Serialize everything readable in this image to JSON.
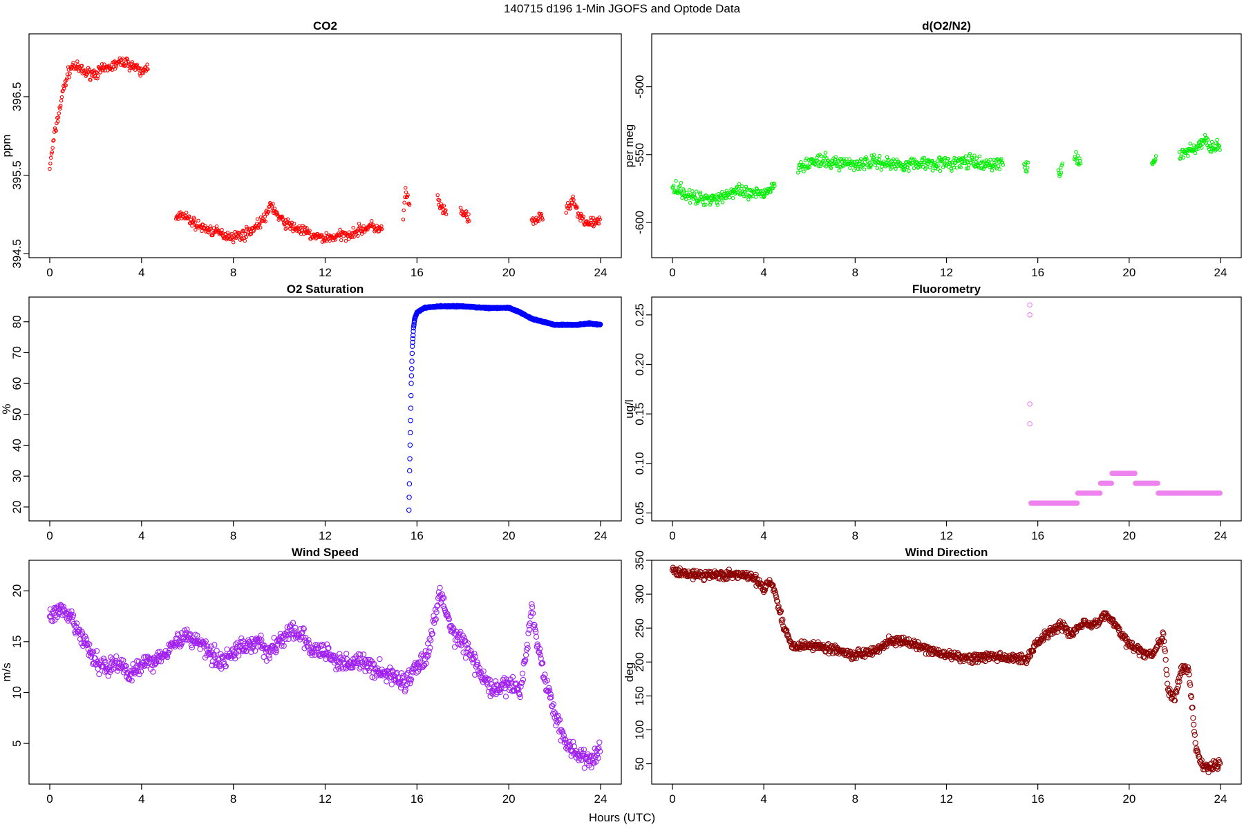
{
  "figure": {
    "suptitle": "140715   d196   1-Min  JGOFS and Optode Data",
    "xlabel": "Hours (UTC)"
  },
  "chart_data": [
    {
      "id": "co2",
      "type": "scatter",
      "title": "CO2",
      "ylabel": "ppm",
      "color": "#ff0000",
      "xlim": [
        0,
        24
      ],
      "ylim": [
        394.45,
        397.3
      ],
      "xticks": [
        0,
        4,
        8,
        12,
        16,
        20,
        24
      ],
      "yticks": [
        394.5,
        395.5,
        396.5
      ],
      "segments": [
        {
          "x": [
            0,
            0.2,
            0.4,
            0.6,
            0.8,
            1.0,
            1.3,
            1.6,
            2.0,
            2.4,
            2.8,
            3.2,
            3.6,
            4.0,
            4.3
          ],
          "y": [
            395.6,
            396.0,
            396.3,
            396.6,
            396.8,
            396.9,
            396.85,
            396.8,
            396.8,
            396.85,
            396.9,
            396.95,
            396.9,
            396.8,
            396.9
          ]
        },
        {
          "x": [
            5.5,
            6,
            6.5,
            7,
            7.5,
            8,
            8.5,
            9,
            9.5,
            9.6,
            10,
            10.5,
            11,
            11.5,
            12,
            12.5,
            13,
            13.5,
            14,
            14.5
          ],
          "y": [
            395.0,
            394.95,
            394.85,
            394.8,
            394.75,
            394.72,
            394.75,
            394.85,
            395.0,
            395.15,
            394.95,
            394.85,
            394.8,
            394.72,
            394.7,
            394.72,
            394.75,
            394.8,
            394.85,
            394.8
          ]
        },
        {
          "x": [
            15.4,
            15.5,
            15.6,
            15.7
          ],
          "y": [
            394.95,
            395.3,
            395.2,
            395.05
          ]
        },
        {
          "x": [
            16.9,
            17.1,
            17.3
          ],
          "y": [
            395.2,
            395.05,
            395.0
          ]
        },
        {
          "x": [
            17.9,
            18.1,
            18.3
          ],
          "y": [
            395.05,
            395.0,
            394.9
          ]
        },
        {
          "x": [
            21.0,
            21.3,
            21.5
          ],
          "y": [
            394.9,
            394.95,
            395.0
          ]
        },
        {
          "x": [
            22.5,
            22.8,
            23.0,
            23.3,
            23.6,
            24.0
          ],
          "y": [
            395.05,
            395.2,
            395.0,
            394.9,
            394.9,
            394.9
          ]
        }
      ]
    },
    {
      "id": "do2n2",
      "type": "scatter",
      "title": "d(O2/N2)",
      "ylabel": "per meg",
      "color": "#00ee00",
      "xlim": [
        0,
        24
      ],
      "ylim": [
        -626,
        -461
      ],
      "xticks": [
        0,
        4,
        8,
        12,
        16,
        20,
        24
      ],
      "yticks": [
        -500,
        -550,
        -600
      ],
      "segments": [
        {
          "x": [
            0,
            0.5,
            1,
            1.5,
            2,
            2.5,
            3,
            3.5,
            4,
            4.5
          ],
          "y": [
            -572,
            -578,
            -583,
            -582,
            -582,
            -578,
            -578,
            -580,
            -578,
            -573
          ]
        },
        {
          "x": [
            5.5,
            6,
            6.5,
            7,
            7.5,
            8,
            8.5,
            9,
            9.5,
            10,
            10.5,
            11,
            11.5,
            12,
            12.5,
            13,
            13.5,
            14,
            14.5
          ],
          "y": [
            -558,
            -556,
            -555,
            -556,
            -556,
            -557,
            -556,
            -555,
            -557,
            -557,
            -557,
            -556,
            -556,
            -557,
            -556,
            -555,
            -558,
            -557,
            -556
          ]
        },
        {
          "x": [
            15.4,
            15.6
          ],
          "y": [
            -558,
            -560
          ]
        },
        {
          "x": [
            16.9,
            17.1
          ],
          "y": [
            -562,
            -560
          ]
        },
        {
          "x": [
            17.6,
            17.9
          ],
          "y": [
            -555,
            -553
          ]
        },
        {
          "x": [
            21.0,
            21.2
          ],
          "y": [
            -556,
            -553
          ]
        },
        {
          "x": [
            22.2,
            22.5,
            22.9,
            23.3,
            23.6,
            24.0
          ],
          "y": [
            -550,
            -548,
            -545,
            -540,
            -543,
            -545
          ]
        }
      ]
    },
    {
      "id": "o2sat",
      "type": "scatter",
      "title": "O2 Saturation",
      "ylabel": "%",
      "color": "#0000ff",
      "xlim": [
        0,
        24
      ],
      "ylim": [
        15.5,
        88
      ],
      "xticks": [
        0,
        4,
        8,
        12,
        16,
        20,
        24
      ],
      "yticks": [
        20,
        30,
        40,
        50,
        60,
        70,
        80
      ],
      "segments": [
        {
          "x": [
            15.65,
            15.7,
            15.75,
            15.8,
            15.85,
            15.9,
            16.0,
            16.3,
            17.0,
            17.5,
            18,
            19,
            20,
            20.5,
            21,
            21.5,
            22,
            23,
            23.5,
            24
          ],
          "y": [
            19,
            40,
            60,
            72,
            78,
            81,
            83,
            84.5,
            85,
            85,
            85,
            84.5,
            84.5,
            83,
            81,
            80,
            79,
            79,
            79.5,
            79
          ]
        }
      ]
    },
    {
      "id": "fluor",
      "type": "scatter",
      "title": "Fluorometry",
      "ylabel": "ug/l",
      "color": "#ee82ee",
      "xlim": [
        0,
        24
      ],
      "ylim": [
        0.042,
        0.268
      ],
      "xticks": [
        0,
        4,
        8,
        12,
        16,
        20,
        24
      ],
      "yticks": [
        0.05,
        0.1,
        0.15,
        0.2,
        0.25
      ],
      "segments": [
        {
          "x": [
            15.7,
            16.0,
            16.5,
            17.0,
            17.5,
            18.0,
            18.5,
            19.0,
            19.5,
            20.0,
            20.5,
            21.0,
            21.5,
            22.0,
            22.5,
            23.0,
            23.5,
            24.0
          ],
          "y": [
            0.06,
            0.06,
            0.06,
            0.06,
            0.06,
            0.07,
            0.07,
            0.08,
            0.09,
            0.09,
            0.08,
            0.08,
            0.07,
            0.07,
            0.07,
            0.07,
            0.07,
            0.07
          ]
        }
      ],
      "extra_points": {
        "x": [
          15.65,
          15.65,
          15.65,
          15.65
        ],
        "y": [
          0.26,
          0.25,
          0.16,
          0.14
        ]
      }
    },
    {
      "id": "wspd",
      "type": "scatter",
      "title": "Wind Speed",
      "ylabel": "m/s",
      "color": "#a020f0",
      "xlim": [
        0,
        24
      ],
      "ylim": [
        1.0,
        23.0
      ],
      "xticks": [
        0,
        4,
        8,
        12,
        16,
        20,
        24
      ],
      "yticks": [
        5,
        10,
        15,
        20
      ],
      "segments": [
        {
          "x": [
            0,
            0.5,
            1,
            1.5,
            2,
            2.5,
            3,
            3.5,
            4,
            4.5,
            5,
            5.5,
            6,
            6.5,
            7,
            7.5,
            8,
            8.5,
            9,
            9.5,
            10,
            10.5,
            11,
            11.5,
            12,
            12.5,
            13,
            13.5,
            14,
            14.5,
            15,
            15.5,
            16,
            16.5,
            17,
            17.5,
            18,
            18.5,
            19,
            19.5,
            20,
            20.5,
            21,
            21.5,
            22,
            22.5,
            23,
            23.5,
            24
          ],
          "y": [
            17.5,
            18,
            17,
            15,
            13,
            12.5,
            13,
            11.5,
            13,
            13,
            14,
            15,
            15.5,
            15,
            14,
            13,
            14,
            14.5,
            15,
            14,
            15,
            16,
            15.5,
            14,
            14,
            13,
            13,
            13,
            12.5,
            12,
            11.5,
            11,
            12.5,
            14,
            20,
            16,
            15,
            13,
            11,
            10,
            11,
            10,
            18,
            12,
            8,
            5,
            4,
            3,
            4.5
          ]
        }
      ]
    },
    {
      "id": "wdir",
      "type": "scatter",
      "title": "Wind Direction",
      "ylabel": "deg",
      "color": "#8b0000",
      "xlim": [
        0,
        24
      ],
      "ylim": [
        20,
        350
      ],
      "xticks": [
        0,
        4,
        8,
        12,
        16,
        20,
        24
      ],
      "yticks": [
        50,
        100,
        150,
        200,
        250,
        300,
        350
      ],
      "segments": [
        {
          "x": [
            0,
            0.5,
            1,
            1.5,
            2,
            2.5,
            3,
            3.5,
            4,
            4.3,
            4.6,
            4.9,
            5.2,
            6,
            7,
            8,
            9,
            9.5,
            10,
            10.5,
            11,
            12,
            13,
            14,
            15,
            15.5,
            16,
            16.5,
            17,
            17.5,
            18,
            18.5,
            19,
            19.5,
            20,
            20.5,
            21,
            21.5,
            21.7,
            22,
            22.3,
            22.6,
            22.9,
            23.2,
            23.5,
            24
          ],
          "y": [
            335,
            332,
            328,
            328,
            330,
            328,
            328,
            325,
            310,
            320,
            290,
            250,
            225,
            225,
            220,
            210,
            220,
            230,
            232,
            225,
            220,
            210,
            205,
            208,
            205,
            205,
            230,
            245,
            255,
            240,
            260,
            255,
            270,
            250,
            225,
            215,
            210,
            240,
            160,
            145,
            190,
            190,
            80,
            45,
            45,
            50
          ]
        }
      ]
    }
  ]
}
